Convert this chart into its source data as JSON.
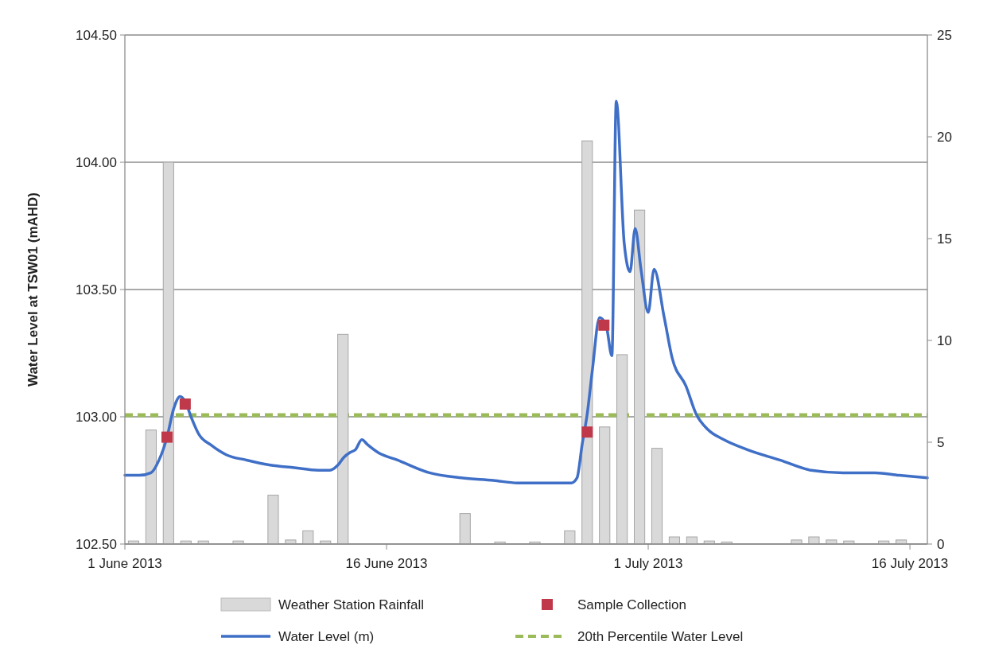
{
  "chart_data": {
    "type": "line",
    "ylabel": "Water Level at TSW01 (mAHD)",
    "xlim": [
      "2013-06-01",
      "2013-07-17"
    ],
    "xticks": [
      {
        "value": "2013-06-01",
        "label": "1 June 2013"
      },
      {
        "value": "2013-06-16",
        "label": "16 June 2013"
      },
      {
        "value": "2013-07-01",
        "label": "1 July 2013"
      },
      {
        "value": "2013-07-16",
        "label": "16 July 2013"
      }
    ],
    "ylim": [
      102.5,
      104.5
    ],
    "yticks": [
      {
        "value": 102.5,
        "label": "102.50"
      },
      {
        "value": 103,
        "label": "103.00"
      },
      {
        "value": 103.5,
        "label": "103.50"
      },
      {
        "value": 104,
        "label": "104.00"
      },
      {
        "value": 104.5,
        "label": "104.50"
      }
    ],
    "y2lim": [
      0,
      25
    ],
    "y2ticks": [
      0,
      5,
      10,
      15,
      20,
      25
    ],
    "grid": "y",
    "legend": "bottom",
    "series": [
      {
        "name": "Weather Station Rainfall",
        "type": "bar",
        "axis": "y2",
        "color": "#d9d9d9",
        "x": [
          "2013-06-01T12:00",
          "2013-06-02T12:00",
          "2013-06-03T12:00",
          "2013-06-04T12:00",
          "2013-06-05T12:00",
          "2013-06-07T12:00",
          "2013-06-09T12:00",
          "2013-06-10T12:00",
          "2013-06-11T12:00",
          "2013-06-12T12:00",
          "2013-06-13T12:00",
          "2013-06-20T12:00",
          "2013-06-22T12:00",
          "2013-06-24T12:00",
          "2013-06-26T12:00",
          "2013-06-27T12:00",
          "2013-06-28T12:00",
          "2013-06-29T12:00",
          "2013-06-30T12:00",
          "2013-07-01T12:00",
          "2013-07-02T12:00",
          "2013-07-03T12:00",
          "2013-07-04T12:00",
          "2013-07-05T12:00",
          "2013-07-09T12:00",
          "2013-07-10T12:00",
          "2013-07-11T12:00",
          "2013-07-12T12:00",
          "2013-07-14T12:00",
          "2013-07-15T12:00"
        ],
        "values": [
          0.15,
          5.6,
          18.75,
          0.15,
          0.15,
          0.15,
          2.4,
          0.2,
          0.65,
          0.15,
          10.3,
          1.5,
          0.1,
          0.1,
          0.65,
          19.8,
          5.75,
          9.3,
          16.4,
          4.7,
          0.35,
          0.35,
          0.15,
          0.1,
          0.2,
          0.35,
          0.2,
          0.15,
          0.15,
          0.2
        ]
      },
      {
        "name": "Sample Collection",
        "type": "scatter",
        "marker": "square",
        "color": "#c0394a",
        "x": [
          "2013-06-03T10:00",
          "2013-06-04T11:00",
          "2013-06-27T12:00",
          "2013-06-28T11:00"
        ],
        "values": [
          102.92,
          103.05,
          102.94,
          103.36
        ]
      },
      {
        "name": "Water Level (m)",
        "color": "#3f6fc6",
        "x": [
          "2013-06-01T00:00",
          "2013-06-01T20:00",
          "2013-06-02T12:00",
          "2013-06-02T23:00",
          "2013-06-03T10:00",
          "2013-06-03T19:00",
          "2013-06-04T04:00",
          "2013-06-04T11:00",
          "2013-06-04T19:00",
          "2013-06-05T06:00",
          "2013-06-05T22:00",
          "2013-06-06T20:00",
          "2013-06-07T23:00",
          "2013-06-09T08:00",
          "2013-06-10T17:00",
          "2013-06-12T02:00",
          "2013-06-12T18:00",
          "2013-06-13T05:00",
          "2013-06-13T13:00",
          "2013-06-13T22:00",
          "2013-06-14T05:00",
          "2013-06-14T14:00",
          "2013-06-14T22:00",
          "2013-06-15T12:00",
          "2013-06-16T15:00",
          "2013-06-18T11:00",
          "2013-06-20T07:00",
          "2013-06-22T03:00",
          "2013-06-23T12:00",
          "2013-06-24T20:00",
          "2013-06-26T00:00",
          "2013-06-26T14:00",
          "2013-06-26T22:00",
          "2013-06-27T05:00",
          "2013-06-27T12:00",
          "2013-06-27T19:00",
          "2013-06-28T05:00",
          "2013-06-28T14:00",
          "2013-06-28T22:00",
          "2013-06-29T04:00",
          "2013-06-29T15:00",
          "2013-06-29T23:00",
          "2013-06-30T06:00",
          "2013-06-30T14:00",
          "2013-07-01T00:00",
          "2013-07-01T08:00",
          "2013-07-01T22:00",
          "2013-07-02T09:00",
          "2013-07-03T04:00",
          "2013-07-03T18:00",
          "2013-07-04T10:00",
          "2013-07-05T08:00",
          "2013-07-06T17:00",
          "2013-07-08T13:00",
          "2013-07-10T08:00",
          "2013-07-12T04:00",
          "2013-07-14T00:00",
          "2013-07-15T09:00",
          "2013-07-17T00:00"
        ],
        "values": [
          102.77,
          102.77,
          102.78,
          102.83,
          102.92,
          103.03,
          103.08,
          103.06,
          103.0,
          102.93,
          102.89,
          102.85,
          102.83,
          102.81,
          102.8,
          102.79,
          102.79,
          102.81,
          102.84,
          102.86,
          102.87,
          102.91,
          102.89,
          102.86,
          102.83,
          102.78,
          102.76,
          102.75,
          102.74,
          102.74,
          102.74,
          102.74,
          102.76,
          102.89,
          103.01,
          103.18,
          103.39,
          103.36,
          103.24,
          104.24,
          103.68,
          103.57,
          103.74,
          103.58,
          103.41,
          103.58,
          103.39,
          103.23,
          103.12,
          103.01,
          102.95,
          102.91,
          102.87,
          102.83,
          102.79,
          102.78,
          102.78,
          102.77,
          102.76
        ]
      }
    ],
    "ref_lines": [
      {
        "axis": "y",
        "value": 103.0,
        "label": "20th Percentile Water Level",
        "color": "#9bbb59",
        "line_style": "dashed"
      }
    ]
  }
}
